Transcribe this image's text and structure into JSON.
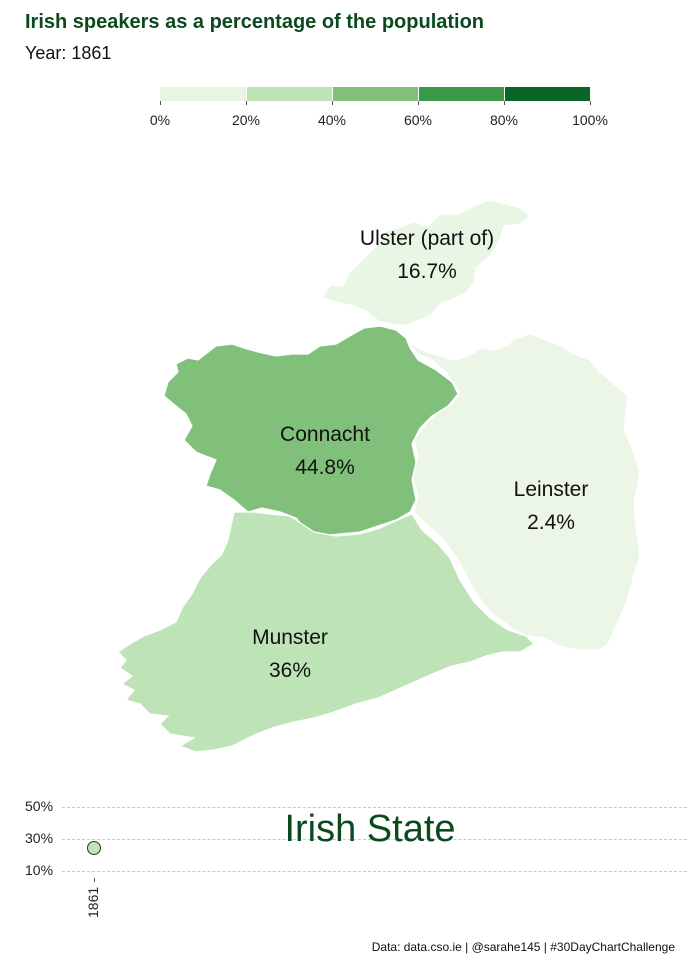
{
  "title": "Irish speakers as a percentage of the population",
  "subtitle": "Year: 1861",
  "legend": {
    "ticks": [
      "0%",
      "20%",
      "40%",
      "60%",
      "80%",
      "100%"
    ],
    "colors": [
      "#e8f5e1",
      "#bde3b6",
      "#80c07b",
      "#389a48",
      "#0a6626"
    ]
  },
  "regions": [
    {
      "key": "ulster",
      "name": "Ulster (part of)",
      "value_label": "16.7%",
      "value": 16.7,
      "color": "#eaf6e4"
    },
    {
      "key": "connacht",
      "name": "Connacht",
      "value_label": "44.8%",
      "value": 44.8,
      "color": "#80c07b"
    },
    {
      "key": "leinster",
      "name": "Leinster",
      "value_label": "2.4%",
      "value": 2.4,
      "color": "#ebf6e6"
    },
    {
      "key": "munster",
      "name": "Munster",
      "value_label": "36%",
      "value": 36,
      "color": "#bde3b6"
    }
  ],
  "state_chart": {
    "label": "Irish State",
    "y_ticks": [
      "50%",
      "30%",
      "10%"
    ],
    "x_ticks": [
      "1861"
    ],
    "points": [
      {
        "year": 1861,
        "value": 24.5,
        "color": "#bde3b6"
      }
    ]
  },
  "chart_data": {
    "type": "scatter",
    "title": "",
    "x": [
      1861
    ],
    "y": [
      24.5
    ],
    "ylim": [
      10,
      50
    ],
    "y_ticks": [
      "50%",
      "30%",
      "10%"
    ],
    "xlabel": "",
    "ylabel": "",
    "grid": true
  },
  "caption": "Data: data.cso.ie | @sarahe145 | #30DayChartChallenge"
}
